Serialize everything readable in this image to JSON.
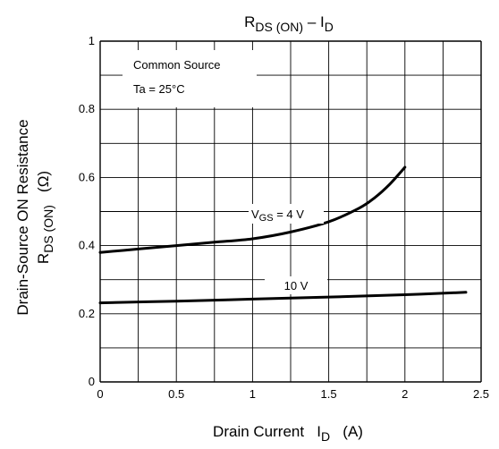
{
  "chart_data": {
    "type": "line",
    "title": {
      "main": "R",
      "sub1": "DS (ON)",
      "dash": " – I",
      "sub2": "D"
    },
    "xlabel": {
      "main": "Drain Current   I",
      "sub": "D",
      "unit": "   (A)"
    },
    "ylabel": {
      "line1": "Drain-Source ON Resistance",
      "line2_main": "R",
      "line2_sub": "DS (ON)",
      "line2_unit": "   (Ω)"
    },
    "xlim": [
      0,
      2.5
    ],
    "ylim": [
      0,
      1
    ],
    "x_ticks": [
      "0",
      "0.5",
      "1",
      "1.5",
      "2",
      "2.5"
    ],
    "y_ticks": [
      "0",
      "0.2",
      "0.4",
      "0.6",
      "0.8",
      "1"
    ],
    "grid": true,
    "annotations": [
      "Common Source",
      "Ta = 25°C"
    ],
    "series": [
      {
        "name": "VGS = 4 V",
        "label_main": "V",
        "label_sub": "GS",
        "label_rest": " = 4 V",
        "x": [
          0,
          0.25,
          0.5,
          0.75,
          1.0,
          1.25,
          1.5,
          1.7,
          1.8,
          1.9,
          2.0
        ],
        "y": [
          0.38,
          0.39,
          0.4,
          0.41,
          0.42,
          0.44,
          0.47,
          0.51,
          0.54,
          0.58,
          0.63
        ]
      },
      {
        "name": "10 V",
        "x": [
          0,
          0.5,
          1.0,
          1.5,
          2.0,
          2.4
        ],
        "y": [
          0.232,
          0.237,
          0.243,
          0.249,
          0.256,
          0.263
        ]
      }
    ]
  }
}
